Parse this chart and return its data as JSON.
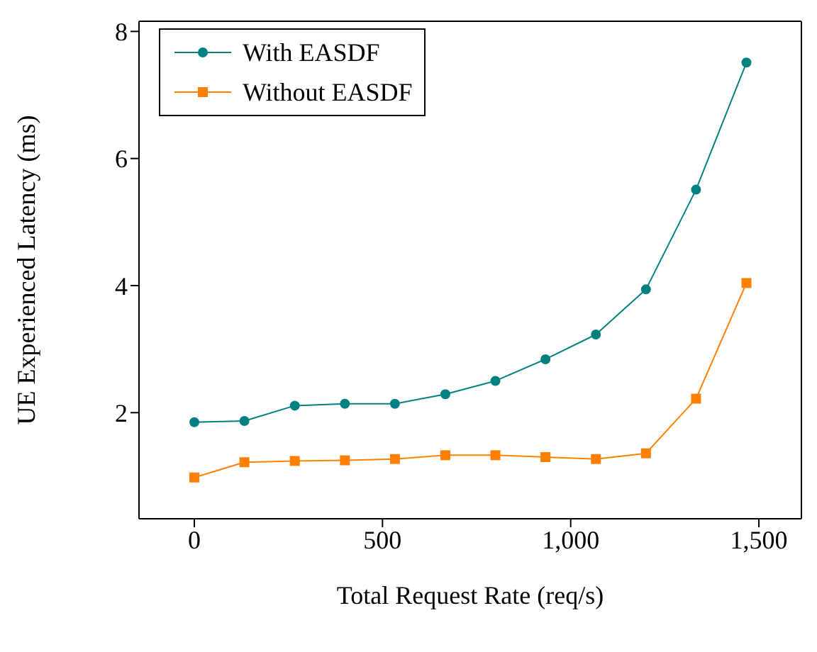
{
  "chart_data": {
    "type": "line",
    "xlabel": "Total Request Rate (req/s)",
    "ylabel": "UE Experienced Latency (ms)",
    "x": [
      0,
      133,
      267,
      400,
      533,
      667,
      800,
      933,
      1067,
      1200,
      1333,
      1467
    ],
    "series": [
      {
        "name": "With EASDF",
        "color": "#008080",
        "marker": "circle",
        "values": [
          1.85,
          1.87,
          2.11,
          2.14,
          2.14,
          2.29,
          2.5,
          2.84,
          3.23,
          3.94,
          5.51,
          7.51
        ]
      },
      {
        "name": "Without EASDF",
        "color": "#ff8000",
        "marker": "square",
        "values": [
          0.98,
          1.22,
          1.24,
          1.25,
          1.27,
          1.33,
          1.33,
          1.3,
          1.27,
          1.36,
          2.22,
          4.04
        ]
      }
    ],
    "xlim": [
      -147,
      1613
    ],
    "xticks": [
      0,
      500,
      {
        "value": 1000,
        "label": "1,000"
      },
      {
        "value": 1500,
        "label": "1,500"
      }
    ],
    "ylim": [
      0.33,
      8.16
    ],
    "yticks": [
      2,
      4,
      6,
      8
    ],
    "grid": false,
    "legend": "top left"
  }
}
